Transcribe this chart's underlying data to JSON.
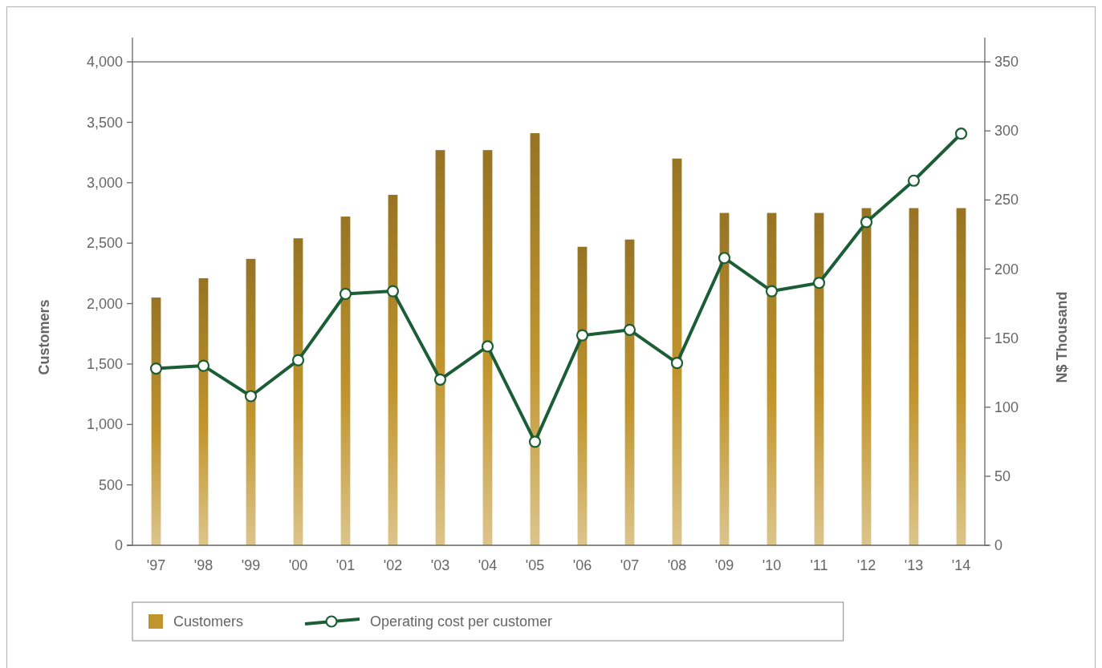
{
  "chart_data": {
    "type": "bar",
    "categories": [
      "'97",
      "'98",
      "'99",
      "'00",
      "'01",
      "'02",
      "'03",
      "'04",
      "'05",
      "'06",
      "'07",
      "'08",
      "'09",
      "'10",
      "'11",
      "'12",
      "'13",
      "'14"
    ],
    "ylabel": "Customers",
    "y2label": "N$ Thousand",
    "ylim": [
      0,
      4200
    ],
    "yticks": [
      0,
      500,
      {
        "value": 1000,
        "label": "1,000"
      },
      {
        "value": 1500,
        "label": "1,500"
      },
      {
        "value": 2000,
        "label": "2,000"
      },
      {
        "value": 2500,
        "label": "2,500"
      },
      {
        "value": 3000,
        "label": "3,000"
      },
      {
        "value": 3500,
        "label": "3,500"
      },
      {
        "value": 4000,
        "label": "4,000"
      }
    ],
    "y2lim": [
      0,
      367.5
    ],
    "y2ticks": [
      0,
      50,
      100,
      150,
      200,
      250,
      300,
      350
    ],
    "series": [
      {
        "name": "Customers",
        "color": "#c0952e",
        "values": [
          2050,
          2210,
          2370,
          2540,
          2720,
          2900,
          3270,
          3270,
          3410,
          2470,
          2530,
          3200,
          2750,
          2750,
          2750,
          2790,
          2790,
          2790
        ]
      },
      {
        "name": "Operating cost per customer",
        "type": "line",
        "axis": "y2",
        "color": "#1b5e36",
        "values": [
          128,
          130,
          108,
          134,
          182,
          184,
          120,
          144,
          75,
          152,
          156,
          132,
          208,
          184,
          190,
          234,
          264,
          298
        ]
      }
    ],
    "marker": "circle",
    "legend": "bottom",
    "ref_lines": [
      {
        "axis": "y",
        "value": 4000,
        "color": "#666666"
      }
    ]
  }
}
